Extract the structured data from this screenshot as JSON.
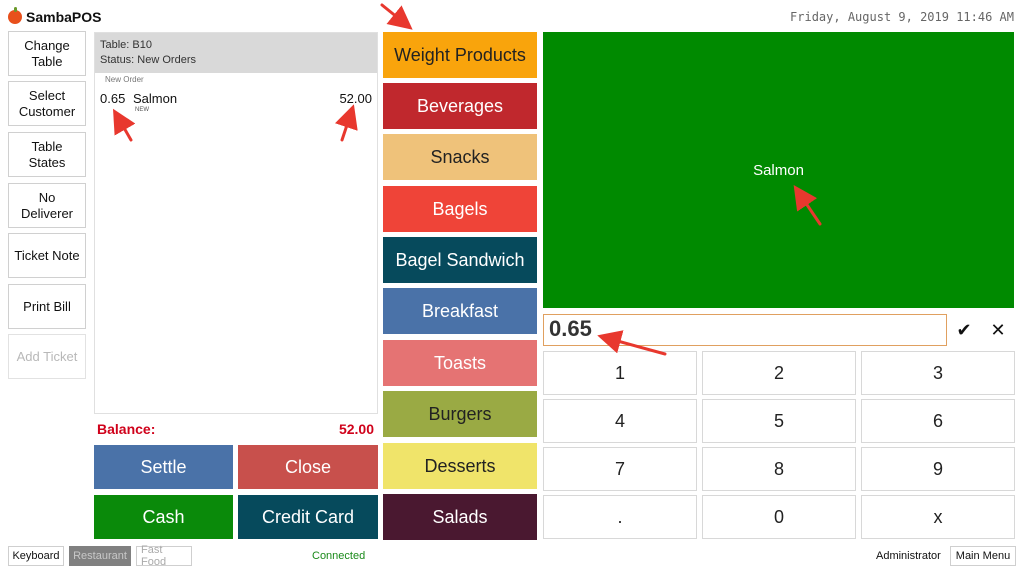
{
  "header": {
    "app_name": "SambaPOS",
    "datetime": "Friday, August 9, 2019 11:46 AM"
  },
  "left_buttons": [
    {
      "label": "Change Table",
      "enabled": true
    },
    {
      "label": "Select Customer",
      "enabled": true
    },
    {
      "label": "Table States",
      "enabled": true
    },
    {
      "label": "No Deliverer",
      "enabled": true
    },
    {
      "label": "Ticket Note",
      "enabled": true
    },
    {
      "label": "Print Bill",
      "enabled": true
    },
    {
      "label": "Add Ticket",
      "enabled": false
    }
  ],
  "ticket": {
    "table": "Table: B10",
    "status": "Status: New Orders",
    "new_order_label": "New Order",
    "orders": [
      {
        "qty": "0.65",
        "name": "Salmon",
        "tag": "NEW",
        "price": "52.00"
      }
    ],
    "balance_label": "Balance:",
    "balance_value": "52.00"
  },
  "payment_buttons": [
    {
      "label": "Settle",
      "color": "#4a72a8"
    },
    {
      "label": "Close",
      "color": "#c8504c"
    },
    {
      "label": "Cash",
      "color": "#0a8a0a"
    },
    {
      "label": "Credit Card",
      "color": "#064a5c"
    }
  ],
  "categories": [
    {
      "label": "Weight Products",
      "bg": "#f9a40c",
      "fg": "#222222"
    },
    {
      "label": "Beverages",
      "bg": "#c0282d",
      "fg": "#ffffff"
    },
    {
      "label": "Snacks",
      "bg": "#efc27a",
      "fg": "#222222"
    },
    {
      "label": "Bagels",
      "bg": "#ef4438",
      "fg": "#ffffff"
    },
    {
      "label": "Bagel Sandwich",
      "bg": "#064a5c",
      "fg": "#ffffff"
    },
    {
      "label": "Breakfast",
      "bg": "#4a72a8",
      "fg": "#ffffff"
    },
    {
      "label": "Toasts",
      "bg": "#e57373",
      "fg": "#ffffff"
    },
    {
      "label": "Burgers",
      "bg": "#9aaa44",
      "fg": "#222222"
    },
    {
      "label": "Desserts",
      "bg": "#f0e46a",
      "fg": "#222222"
    },
    {
      "label": "Salads",
      "bg": "#4a1830",
      "fg": "#ffffff"
    }
  ],
  "product": {
    "label": "Salmon",
    "color": "#008a00"
  },
  "numpad": {
    "value": "0.65",
    "confirm_icon": "check-icon",
    "clear_icon": "close-icon",
    "keys": [
      "1",
      "2",
      "3",
      "4",
      "5",
      "6",
      "7",
      "8",
      "9",
      ".",
      "0",
      "x"
    ]
  },
  "footer": {
    "keyboard": "Keyboard",
    "restaurant": "Restaurant",
    "fast_food": "Fast Food",
    "status": "Connected",
    "user": "Administrator",
    "main_menu": "Main Menu"
  }
}
